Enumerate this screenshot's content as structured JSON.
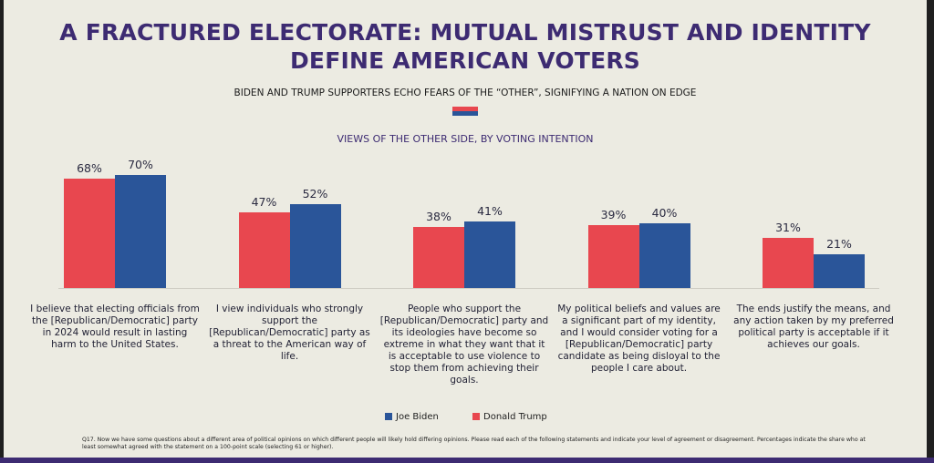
{
  "title_line1": "A FRACTURED ELECTORATE: MUTUAL MISTRUST AND IDENTITY",
  "title_line2": "DEFINE AMERICAN VOTERS",
  "subtitle": "BIDEN AND TRUMP SUPPORTERS ECHO FEARS OF THE “OTHER”, SIGNIFYING A NATION ON EDGE",
  "colors": {
    "trump": "#e8474f",
    "biden": "#2a5599",
    "title": "#3d2b72"
  },
  "chart_data": {
    "type": "bar",
    "title": "VIEWS OF THE OTHER SIDE, BY VOTING INTENTION",
    "categories": [
      "I believe that electing officials from the [Republican/Democratic] party in 2024 would result in lasting harm to the United States.",
      "I view individuals who strongly support the [Republican/Democratic] party as a threat to the American way of life.",
      "People who support the [Republican/Democratic] party and its ideologies have become so extreme in what they want that it is acceptable to use violence to stop them from achieving their goals.",
      "My political beliefs and values are a significant part of my identity, and I would consider voting for a [Republican/Democratic] party candidate as being disloyal to the people I care about.",
      "The ends justify the means, and any action taken by my preferred political party is acceptable if it achieves our goals."
    ],
    "series": [
      {
        "name": "Donald Trump",
        "values": [
          68,
          47,
          38,
          39,
          31
        ],
        "labels": [
          "68%",
          "47%",
          "38%",
          "39%",
          "31%"
        ],
        "color": "#e8474f"
      },
      {
        "name": "Joe Biden",
        "values": [
          70,
          52,
          41,
          40,
          21
        ],
        "labels": [
          "70%",
          "52%",
          "41%",
          "40%",
          "21%"
        ],
        "color": "#2a5599"
      }
    ],
    "ylim": [
      0,
      70
    ],
    "grid": false,
    "legend": "bottom-center",
    "legend_order": [
      "Joe Biden",
      "Donald Trump"
    ]
  },
  "footnote": "Q17. Now we have some questions about a different area of political opinions on which different people will likely hold differing opinions. Please read each of the following statements and indicate your level of agreement or disagreement. Percentages indicate the share who at least somewhat agreed with the statement on a 100-point scale (selecting 61 or higher)."
}
